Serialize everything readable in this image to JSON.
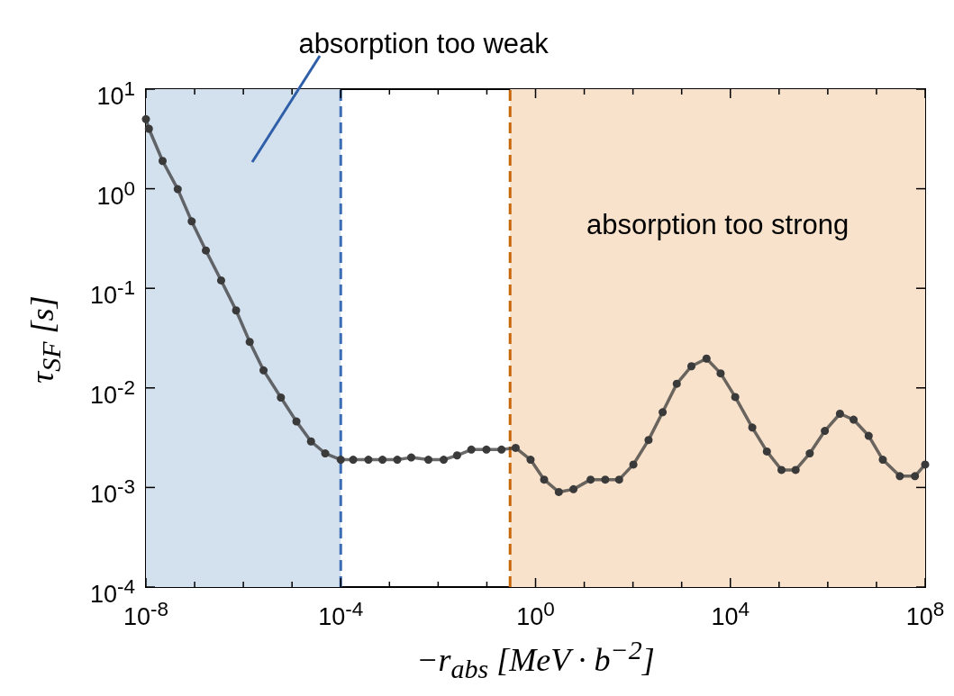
{
  "chart_data": {
    "type": "line",
    "xlabel": "−r$_{abs}$ [MeV · b$^{−2}$]",
    "ylabel": "τ$_{SF}$ [s]",
    "log": "xy",
    "grid": false,
    "marker": "circle",
    "line_style": "solid",
    "xlim": [
      1e-08,
      100000000.0
    ],
    "ylim": [
      0.0001,
      10
    ],
    "xticks": [
      {
        "value": 1e-08,
        "label": "10$^{-8}$"
      },
      {
        "value": 1e-07,
        "label": null
      },
      {
        "value": 1e-06,
        "label": null
      },
      {
        "value": 1e-05,
        "label": null
      },
      {
        "value": 0.0001,
        "label": "10$^{-4}$"
      },
      {
        "value": 0.001,
        "label": null
      },
      {
        "value": 0.01,
        "label": null
      },
      {
        "value": 0.1,
        "label": null
      },
      {
        "value": 1,
        "label": "10$^{0}$"
      },
      {
        "value": 10,
        "label": null
      },
      {
        "value": 100,
        "label": null
      },
      {
        "value": 1000,
        "label": null
      },
      {
        "value": 10000,
        "label": "10$^{4}$"
      },
      {
        "value": 100000.0,
        "label": null
      },
      {
        "value": 1000000.0,
        "label": null
      },
      {
        "value": 10000000.0,
        "label": null
      },
      {
        "value": 100000000.0,
        "label": "10$^{8}$"
      }
    ],
    "yticks": [
      {
        "value": 0.0001,
        "label": "10$^{-4}$"
      },
      {
        "value": 0.001,
        "label": "10$^{-3}$"
      },
      {
        "value": 0.01,
        "label": "10$^{-2}$"
      },
      {
        "value": 0.1,
        "label": "10$^{-1}$"
      },
      {
        "value": 1,
        "label": "10$^{0}$"
      },
      {
        "value": 10,
        "label": "10$^{1}$"
      }
    ],
    "bands": [
      {
        "axis": "x",
        "from": 1e-08,
        "to": 0.0001,
        "label": "absorption too weak",
        "color": "#d3e0ee"
      },
      {
        "axis": "x",
        "from": 0.3,
        "to": 100000000.0,
        "label": "absorption too strong",
        "color": "#f9e2cb"
      }
    ],
    "ref_lines": [
      {
        "axis": "x",
        "value": 0.0001,
        "color": "#3a6db5",
        "line_style": "dashed"
      },
      {
        "axis": "x",
        "value": 0.3,
        "color": "#c8660a",
        "line_style": "dashed"
      }
    ],
    "series": [
      {
        "color": "#3a3a3a",
        "x": [
          1e-08,
          1.15e-08,
          2.2e-08,
          4.5e-08,
          8.7e-08,
          1.7e-07,
          3.5e-07,
          7.1e-07,
          1.35e-06,
          2.6e-06,
          5.9e-06,
          1.23e-05,
          2.45e-05,
          4.8e-05,
          0.0001,
          0.00018,
          0.00037,
          0.00072,
          0.00145,
          0.0028,
          0.0063,
          0.013,
          0.0245,
          0.048,
          0.098,
          0.2,
          0.39,
          0.79,
          1.5,
          3.0,
          6.0,
          13.5,
          27,
          52,
          102,
          209,
          407,
          794,
          1585,
          3236,
          6310,
          12590,
          28180,
          56230,
          112200,
          218800,
          426600,
          871000,
          1780000.0,
          3390000.0,
          6920000.0,
          13500000.0,
          30200000.0,
          61700000.0,
          100000000.0
        ],
        "values": [
          5.0,
          4.0,
          1.9,
          0.99,
          0.47,
          0.24,
          0.12,
          0.06,
          0.029,
          0.015,
          0.008,
          0.0046,
          0.0029,
          0.0022,
          0.0019,
          0.0019,
          0.0019,
          0.0019,
          0.0019,
          0.002,
          0.0019,
          0.0019,
          0.0021,
          0.0024,
          0.0024,
          0.0024,
          0.0025,
          0.0019,
          0.0012,
          0.0009,
          0.00096,
          0.0012,
          0.0012,
          0.0012,
          0.0017,
          0.003,
          0.0057,
          0.011,
          0.0165,
          0.0197,
          0.014,
          0.0081,
          0.004,
          0.0023,
          0.0015,
          0.0015,
          0.0022,
          0.0037,
          0.0055,
          0.0048,
          0.0033,
          0.0019,
          0.0013,
          0.0013,
          0.0017
        ]
      }
    ]
  }
}
